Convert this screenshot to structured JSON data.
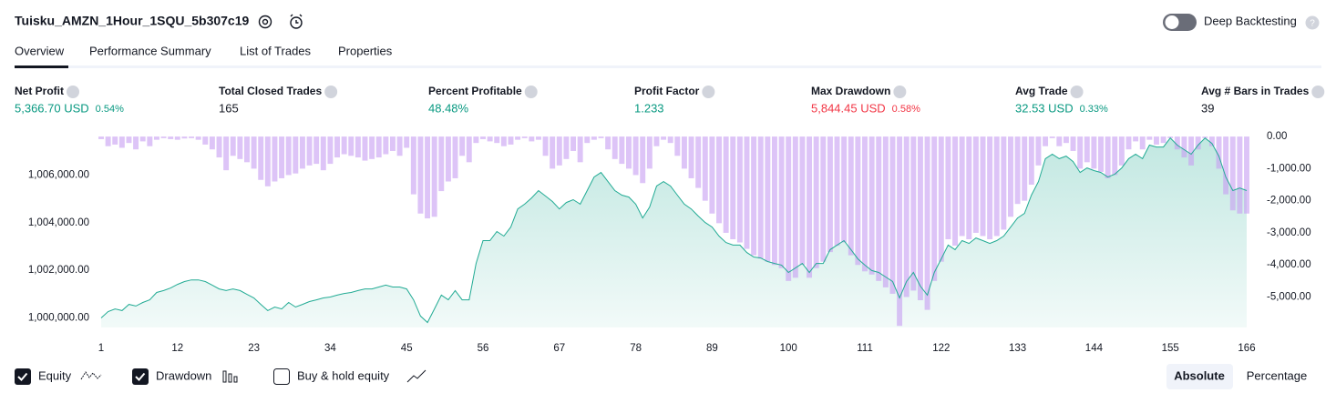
{
  "header": {
    "title": "Tuisku_AMZN_1Hour_1SQU_5b307c19",
    "toggle_label": "Deep Backtesting"
  },
  "tabs": [
    "Overview",
    "Performance Summary",
    "List of Trades",
    "Properties"
  ],
  "metrics": [
    {
      "label": "Net Profit",
      "value": "5,366.70 USD",
      "extra": "0.54%"
    },
    {
      "label": "Total Closed Trades",
      "value": "165"
    },
    {
      "label": "Percent Profitable",
      "value": "48.48%"
    },
    {
      "label": "Profit Factor",
      "value": "1.233"
    },
    {
      "label": "Max Drawdown",
      "value": "5,844.45 USD",
      "extra": "0.58%"
    },
    {
      "label": "Avg Trade",
      "value": "32.53 USD",
      "extra": "0.33%"
    },
    {
      "label": "Avg # Bars in Trades",
      "value": "39"
    }
  ],
  "chart_data": {
    "type": "line",
    "x": [
      1,
      2,
      3,
      4,
      5,
      6,
      7,
      8,
      9,
      10,
      11,
      12,
      13,
      14,
      15,
      16,
      17,
      18,
      19,
      20,
      21,
      22,
      23,
      24,
      25,
      26,
      27,
      28,
      29,
      30,
      31,
      32,
      33,
      34,
      35,
      36,
      37,
      38,
      39,
      40,
      41,
      42,
      43,
      44,
      45,
      46,
      47,
      48,
      49,
      50,
      51,
      52,
      53,
      54,
      55,
      56,
      57,
      58,
      59,
      60,
      61,
      62,
      63,
      64,
      65,
      66,
      67,
      68,
      69,
      70,
      71,
      72,
      73,
      74,
      75,
      76,
      77,
      78,
      79,
      80,
      81,
      82,
      83,
      84,
      85,
      86,
      87,
      88,
      89,
      90,
      91,
      92,
      93,
      94,
      95,
      96,
      97,
      98,
      99,
      100,
      101,
      102,
      103,
      104,
      105,
      106,
      107,
      108,
      109,
      110,
      111,
      112,
      113,
      114,
      115,
      116,
      117,
      118,
      119,
      120,
      121,
      122,
      123,
      124,
      125,
      126,
      127,
      128,
      129,
      130,
      131,
      132,
      133,
      134,
      135,
      136,
      137,
      138,
      139,
      140,
      141,
      142,
      143,
      144,
      145,
      146,
      147,
      148,
      149,
      150,
      151,
      152,
      153,
      154,
      155,
      156,
      157,
      158,
      159,
      160,
      161,
      162,
      163,
      164,
      165,
      166
    ],
    "xlim": [
      1,
      166
    ],
    "xticks": [
      1,
      12,
      23,
      34,
      45,
      56,
      67,
      78,
      89,
      100,
      111,
      122,
      133,
      144,
      155,
      166
    ],
    "ylim": [
      999600,
      1007700
    ],
    "yticks": [
      {
        "value": 1000000,
        "label": "1,000,000.00"
      },
      {
        "value": 1002000,
        "label": "1,002,000.00"
      },
      {
        "value": 1004000,
        "label": "1,004,000.00"
      },
      {
        "value": 1006000,
        "label": "1,006,000.00"
      }
    ],
    "y2lim": [
      -5950,
      60
    ],
    "y2ticks": [
      {
        "value": 0,
        "label": "0.00"
      },
      {
        "value": -1000,
        "label": "-1,000.00"
      },
      {
        "value": -2000,
        "label": "-2,000.00"
      },
      {
        "value": -3000,
        "label": "-3,000.00"
      },
      {
        "value": -4000,
        "label": "-4,000.00"
      },
      {
        "value": -5000,
        "label": "-5,000.00"
      }
    ],
    "series": [
      {
        "name": "Equity",
        "type": "line",
        "color": "#22ab94",
        "values": [
          1000000,
          1000270,
          1000380,
          1000310,
          1000570,
          1000500,
          1000650,
          1000760,
          1001070,
          1001150,
          1001260,
          1001410,
          1001530,
          1001600,
          1001600,
          1001530,
          1001380,
          1001220,
          1001150,
          1001220,
          1001150,
          1000990,
          1000840,
          1000570,
          1000310,
          1000460,
          1000380,
          1000650,
          1000460,
          1000570,
          1000690,
          1000760,
          1000840,
          1000880,
          1000960,
          1001030,
          1001070,
          1001150,
          1001220,
          1001220,
          1001300,
          1001380,
          1001300,
          1001300,
          1001220,
          1000760,
          1000080,
          999810,
          1000380,
          1000960,
          1000760,
          1001150,
          1000760,
          1000760,
          1002290,
          1003250,
          1003250,
          1003630,
          1003440,
          1003820,
          1004580,
          1004780,
          1005040,
          1005350,
          1005120,
          1004890,
          1004580,
          1004850,
          1004970,
          1004780,
          1005350,
          1005920,
          1006110,
          1005730,
          1005350,
          1005160,
          1005080,
          1004780,
          1004200,
          1004660,
          1005540,
          1005730,
          1005540,
          1005160,
          1004780,
          1004580,
          1004280,
          1004010,
          1003820,
          1003440,
          1003170,
          1003060,
          1003060,
          1002750,
          1002560,
          1002520,
          1002370,
          1002290,
          1002220,
          1001910,
          1002100,
          1002290,
          1001910,
          1002290,
          1002290,
          1002870,
          1003060,
          1003250,
          1002870,
          1002480,
          1002220,
          1001990,
          1001910,
          1001720,
          1001530,
          1000840,
          1001530,
          1001910,
          1001340,
          1000960,
          1001910,
          1002480,
          1003060,
          1002870,
          1003250,
          1003130,
          1003360,
          1003250,
          1003130,
          1003250,
          1003440,
          1003820,
          1004200,
          1004390,
          1005160,
          1005730,
          1006690,
          1006880,
          1006690,
          1006800,
          1006570,
          1006110,
          1006300,
          1006190,
          1006110,
          1005920,
          1006040,
          1006300,
          1006690,
          1006880,
          1006690,
          1007260,
          1007180,
          1007180,
          1007560,
          1007260,
          1007070,
          1006880,
          1007260,
          1007560,
          1007330,
          1006800,
          1005920,
          1005350,
          1005460,
          1005350
        ]
      },
      {
        "name": "Drawdown",
        "type": "bar",
        "axis": "y2",
        "color": "#c69cf2",
        "values": [
          -80,
          -300,
          -250,
          -350,
          -200,
          -400,
          -150,
          -300,
          -100,
          -50,
          -80,
          -100,
          -60,
          -50,
          -100,
          -250,
          -400,
          -650,
          -1050,
          -600,
          -700,
          -800,
          -1000,
          -1350,
          -1550,
          -1400,
          -1300,
          -1200,
          -1150,
          -1000,
          -900,
          -850,
          -1050,
          -850,
          -650,
          -550,
          -600,
          -650,
          -750,
          -700,
          -650,
          -550,
          -450,
          -600,
          -350,
          -1800,
          -2400,
          -2550,
          -2500,
          -1700,
          -1400,
          -1300,
          -600,
          -800,
          -200,
          -80,
          -150,
          -200,
          -300,
          -250,
          -100,
          -50,
          -150,
          -100,
          -600,
          -1000,
          -900,
          -700,
          -450,
          -800,
          -200,
          -100,
          -50,
          -400,
          -700,
          -850,
          -1000,
          -1200,
          -1450,
          -1000,
          -300,
          -100,
          -200,
          -600,
          -1000,
          -1300,
          -1600,
          -2000,
          -2400,
          -2700,
          -3000,
          -3200,
          -3300,
          -3500,
          -3700,
          -3800,
          -3900,
          -4000,
          -4100,
          -4500,
          -4400,
          -4000,
          -4400,
          -4100,
          -3900,
          -3600,
          -3400,
          -3300,
          -3700,
          -4000,
          -4200,
          -4300,
          -4500,
          -4700,
          -4900,
          -5900,
          -5000,
          -4800,
          -5100,
          -5400,
          -4500,
          -3900,
          -3200,
          -3400,
          -3100,
          -3200,
          -3000,
          -3100,
          -3200,
          -3100,
          -2900,
          -2500,
          -2100,
          -2000,
          -1500,
          -900,
          -300,
          -50,
          -300,
          -200,
          -450,
          -1000,
          -800,
          -1000,
          -1100,
          -1300,
          -1200,
          -900,
          -400,
          -150,
          -400,
          -100,
          -250,
          -200,
          -50,
          -400,
          -650,
          -900,
          -400,
          -50,
          -300,
          -1000,
          -1800,
          -2300,
          -2400,
          -2400
        ]
      }
    ]
  },
  "controls": {
    "checkboxes": [
      {
        "label": "Buy & hold equity"
      }
    ],
    "modes": [
      "Absolute",
      "Percentage"
    ]
  }
}
